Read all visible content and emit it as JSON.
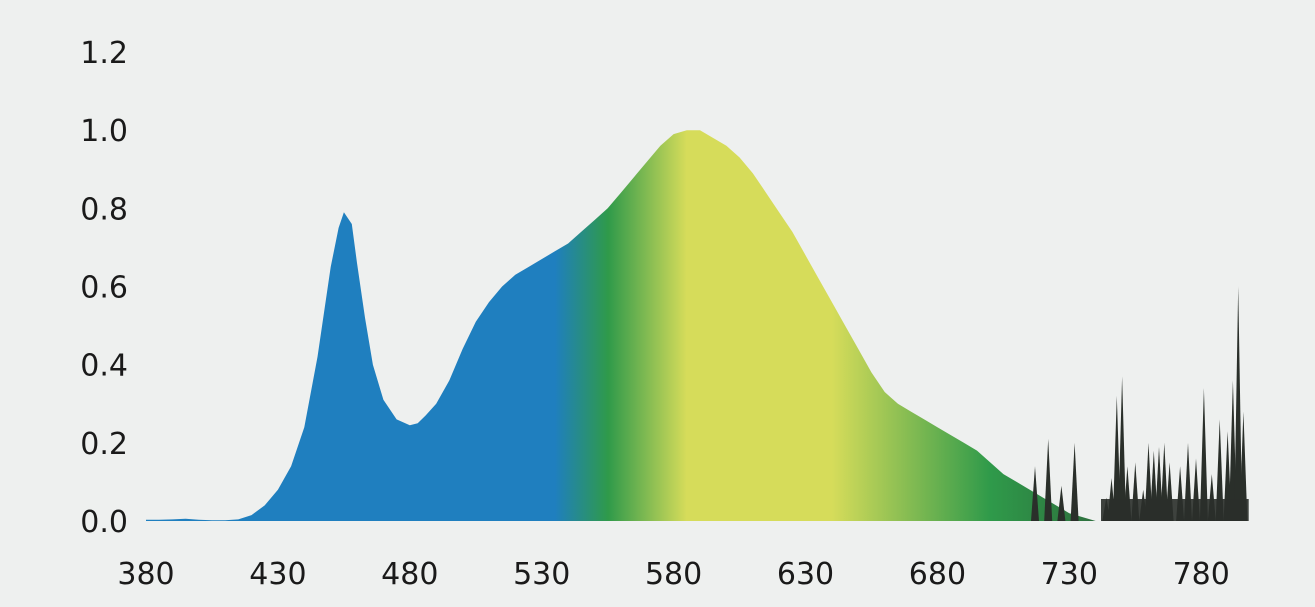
{
  "chart_data": {
    "type": "area",
    "title": "",
    "xlabel": "",
    "ylabel": "",
    "xlim": [
      380,
      800
    ],
    "ylim": [
      0,
      1.2
    ],
    "x_ticks": [
      "380",
      "430",
      "480",
      "530",
      "580",
      "630",
      "680",
      "730",
      "780"
    ],
    "y_ticks": [
      "0.0",
      "0.2",
      "0.4",
      "0.6",
      "0.8",
      "1.0",
      "1.2"
    ],
    "grid": false,
    "legend": "none",
    "colors": {
      "background": "#eef0ef",
      "blue": "#1f7fbf",
      "green": "#2f9a4a",
      "yellow": "#d6dc5a",
      "dark": "#2a2f2a",
      "text": "#1a1a1a"
    },
    "series": [
      {
        "x": [
          380,
          385,
          390,
          395,
          400,
          405,
          410,
          415,
          420,
          425,
          430,
          435,
          440,
          445,
          450,
          453,
          455,
          458,
          460,
          463,
          466,
          470,
          475,
          480,
          483,
          486,
          490,
          495,
          500,
          505,
          510,
          515,
          520,
          525,
          530,
          535,
          540,
          545,
          550,
          555,
          560,
          565,
          570,
          575,
          580,
          585,
          590,
          595,
          600,
          605,
          610,
          615,
          620,
          625,
          630,
          635,
          640,
          645,
          650,
          655,
          660,
          665,
          670,
          675,
          680,
          685,
          690,
          695,
          700,
          705,
          710,
          715,
          720,
          725,
          730,
          735,
          740,
          745,
          750,
          755,
          760,
          765,
          770,
          775,
          780,
          785,
          790,
          795,
          800
        ],
        "values": [
          0.003,
          0.003,
          0.004,
          0.006,
          0.003,
          0.002,
          0.002,
          0.004,
          0.015,
          0.04,
          0.08,
          0.14,
          0.24,
          0.42,
          0.65,
          0.75,
          0.79,
          0.76,
          0.66,
          0.52,
          0.4,
          0.31,
          0.26,
          0.245,
          0.25,
          0.27,
          0.3,
          0.36,
          0.44,
          0.51,
          0.56,
          0.6,
          0.63,
          0.65,
          0.67,
          0.69,
          0.71,
          0.74,
          0.77,
          0.8,
          0.84,
          0.88,
          0.92,
          0.96,
          0.99,
          1.0,
          1.0,
          0.98,
          0.96,
          0.93,
          0.89,
          0.84,
          0.79,
          0.74,
          0.68,
          0.62,
          0.56,
          0.5,
          0.44,
          0.38,
          0.33,
          0.3,
          0.28,
          0.26,
          0.24,
          0.22,
          0.2,
          0.18,
          0.15,
          0.12,
          0.1,
          0.08,
          0.06,
          0.04,
          0.02,
          0.01,
          0.0,
          0.0,
          0.0,
          0.0,
          0.0,
          0.0,
          0.0,
          0.0,
          0.0,
          0.0,
          0.0,
          0.0,
          0.0
        ]
      },
      {
        "x": [
          717,
          722,
          727,
          732,
          744,
          746,
          748,
          750,
          752,
          755,
          758,
          760,
          762,
          764,
          766,
          768,
          772,
          775,
          778,
          781,
          784,
          787,
          790,
          792,
          794,
          796
        ],
        "values": [
          0.14,
          0.21,
          0.09,
          0.2,
          0.06,
          0.11,
          0.32,
          0.37,
          0.14,
          0.15,
          0.08,
          0.2,
          0.18,
          0.19,
          0.2,
          0.15,
          0.14,
          0.2,
          0.16,
          0.34,
          0.12,
          0.26,
          0.23,
          0.36,
          0.6,
          0.28
        ]
      }
    ]
  }
}
